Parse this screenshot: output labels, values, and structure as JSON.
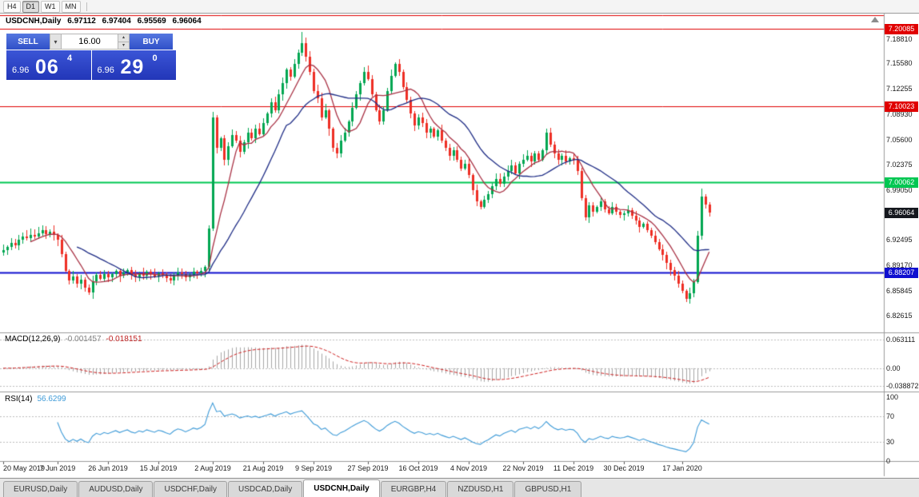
{
  "toolbar": {
    "periods": [
      "H4",
      "D1",
      "W1",
      "MN"
    ],
    "active_period": "D1"
  },
  "trade_panel": {
    "sell_label": "SELL",
    "buy_label": "BUY",
    "volume": "16.00",
    "sell_price": {
      "base": "6.96",
      "big": "06",
      "sup": "4"
    },
    "buy_price": {
      "base": "6.96",
      "big": "29",
      "sup": "0"
    }
  },
  "chart": {
    "symbol_title": "USDCNH,Daily",
    "ohlc": {
      "open": "6.97112",
      "high": "6.97404",
      "low": "6.95569",
      "close": "6.96064"
    },
    "current_price_tag": "6.96064",
    "price_ticks": [
      "7.18810",
      "7.15580",
      "7.12255",
      "7.08930",
      "7.05600",
      "7.02375",
      "6.99050",
      "6.92495",
      "6.89170",
      "6.85845",
      "6.82615"
    ]
  },
  "macd_panel": {
    "title": "MACD(12,26,9)",
    "value_main": "-0.001457",
    "value_signal": "-0.018151",
    "axis_labels": [
      "0.063111",
      "0.00",
      "-0.038872"
    ]
  },
  "rsi_panel": {
    "title": "RSI(14)",
    "value": "56.6299",
    "axis_labels": [
      "100",
      "70",
      "30",
      "0"
    ]
  },
  "date_axis": [
    {
      "text": "20 May 2019",
      "bar": 0
    },
    {
      "text": "7 Jun 2019",
      "bar": 14
    },
    {
      "text": "26 Jun 2019",
      "bar": 27
    },
    {
      "text": "15 Jul 2019",
      "bar": 40
    },
    {
      "text": "2 Aug 2019",
      "bar": 54
    },
    {
      "text": "21 Aug 2019",
      "bar": 67
    },
    {
      "text": "9 Sep 2019",
      "bar": 80
    },
    {
      "text": "27 Sep 2019",
      "bar": 94
    },
    {
      "text": "16 Oct 2019",
      "bar": 107
    },
    {
      "text": "4 Nov 2019",
      "bar": 120
    },
    {
      "text": "22 Nov 2019",
      "bar": 134
    },
    {
      "text": "11 Dec 2019",
      "bar": 147
    },
    {
      "text": "30 Dec 2019",
      "bar": 160
    },
    {
      "text": "17 Jan 2020",
      "bar": 175
    }
  ],
  "tabs": [
    "EURUSD,Daily",
    "AUDUSD,Daily",
    "USDCHF,Daily",
    "USDCAD,Daily",
    "USDCNH,Daily",
    "EURGBP,H4",
    "NZDUSD,H1",
    "GBPUSD,H1"
  ],
  "active_tab": "USDCNH,Daily",
  "colors": {
    "bull": "#00a651",
    "bear": "#ee2e24",
    "ma_fast": "#a93144",
    "ma_slow": "#1f2d86",
    "level_red": "#e00000",
    "level_green": "#00c752",
    "level_blue": "#0f0fd0",
    "rsi_line": "#3e9bd8",
    "macd_hist": "#a6a6a6",
    "macd_signal": "#d02222",
    "tag_dark": "#15181e",
    "dashed_level": "#bdbdbd"
  },
  "chart_data": {
    "type": "candlestick",
    "title": "USDCNH,Daily",
    "price_range": [
      6.805,
      7.22
    ],
    "closes": [
      6.912,
      6.9155,
      6.921,
      6.918,
      6.925,
      6.9295,
      6.927,
      6.932,
      6.929,
      6.934,
      6.9375,
      6.933,
      6.936,
      6.931,
      6.925,
      6.906,
      6.884,
      6.872,
      6.877,
      6.868,
      6.873,
      6.862,
      6.856,
      6.871,
      6.879,
      6.874,
      6.88,
      6.876,
      6.88,
      6.884,
      6.878,
      6.882,
      6.885,
      6.879,
      6.876,
      6.881,
      6.878,
      6.883,
      6.88,
      6.877,
      6.881,
      6.879,
      6.875,
      6.872,
      6.878,
      6.882,
      6.88,
      6.876,
      6.879,
      6.883,
      6.881,
      6.884,
      6.89,
      6.94,
      7.085,
      7.045,
      7.058,
      7.03,
      7.048,
      7.062,
      7.055,
      7.04,
      7.053,
      7.065,
      7.058,
      7.07,
      7.063,
      7.078,
      7.09,
      7.105,
      7.095,
      7.115,
      7.13,
      7.148,
      7.138,
      7.155,
      7.17,
      7.182,
      7.165,
      7.145,
      7.12,
      7.11,
      7.085,
      7.095,
      7.07,
      7.045,
      7.038,
      7.055,
      7.065,
      7.08,
      7.098,
      7.115,
      7.13,
      7.145,
      7.135,
      7.115,
      7.095,
      7.08,
      7.095,
      7.12,
      7.14,
      7.155,
      7.145,
      7.125,
      7.108,
      7.09,
      7.075,
      7.085,
      7.078,
      7.065,
      7.07,
      7.06,
      7.068,
      7.055,
      7.045,
      7.035,
      7.042,
      7.03,
      7.018,
      7.025,
      7.01,
      6.99,
      6.975,
      6.968,
      6.978,
      6.985,
      6.995,
      7.005,
      6.998,
      7.008,
      7.015,
      7.022,
      7.012,
      7.025,
      7.03,
      7.035,
      7.028,
      7.038,
      7.03,
      7.042,
      7.065,
      7.05,
      7.038,
      7.03,
      7.035,
      7.028,
      7.032,
      7.03,
      7.015,
      6.98,
      6.955,
      6.97,
      6.962,
      6.968,
      6.975,
      6.965,
      6.96,
      6.968,
      6.962,
      6.958,
      6.96,
      6.964,
      6.957,
      6.95,
      6.942,
      6.946,
      6.938,
      6.93,
      6.922,
      6.913,
      6.905,
      6.895,
      6.885,
      6.878,
      6.868,
      6.858,
      6.848,
      6.855,
      6.87,
      6.93,
      6.982,
      6.9711,
      6.9606
    ],
    "special_highs": {
      "77": 7.1965,
      "180": 6.992
    },
    "special_lows": {
      "176": 6.8442
    },
    "last_bar": {
      "open": 6.97112,
      "high": 6.97404,
      "low": 6.95569,
      "close": 6.96064
    },
    "levels": [
      {
        "price": 7.2185,
        "label": "",
        "color": "#e00000",
        "width": 1
      },
      {
        "price": 7.20085,
        "label": "7.20085",
        "color": "#e00000",
        "width": 1
      },
      {
        "price": 7.10023,
        "label": "7.10023",
        "color": "#e00000",
        "width": 1
      },
      {
        "price": 7.00062,
        "label": "7.00062",
        "color": "#00c752",
        "width": 2
      },
      {
        "price": 6.88207,
        "label": "6.88207",
        "color": "#0f0fd0",
        "width": 2
      }
    ],
    "moving_averages": [
      {
        "period": 8,
        "color_key": "ma_fast"
      },
      {
        "period": 20,
        "color_key": "ma_slow"
      }
    ],
    "macd": {
      "fast": 12,
      "slow": 26,
      "signal": 9,
      "axis_levels": [
        0.063111,
        0,
        -0.038872
      ]
    },
    "rsi": {
      "period": 14,
      "levels": [
        70,
        30
      ],
      "scale": [
        0,
        100
      ]
    }
  }
}
